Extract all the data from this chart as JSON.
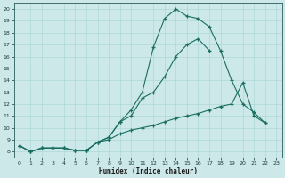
{
  "xlabel": "Humidex (Indice chaleur)",
  "bg_color": "#cce8e8",
  "line_color": "#1a6e60",
  "xlim": [
    -0.5,
    23.5
  ],
  "ylim": [
    7.5,
    20.5
  ],
  "yticks": [
    8,
    9,
    10,
    11,
    12,
    13,
    14,
    15,
    16,
    17,
    18,
    19,
    20
  ],
  "xticks": [
    0,
    1,
    2,
    3,
    4,
    5,
    6,
    7,
    8,
    9,
    10,
    11,
    12,
    13,
    14,
    15,
    16,
    17,
    18,
    19,
    20,
    21,
    22,
    23
  ],
  "line1_x": [
    0,
    1,
    2,
    3,
    4,
    5,
    6,
    7,
    8,
    9,
    10,
    11,
    12,
    13,
    14,
    15,
    16,
    17,
    18,
    19,
    20,
    21,
    22
  ],
  "line1_y": [
    8.5,
    8.0,
    8.3,
    8.3,
    8.3,
    8.1,
    8.1,
    8.8,
    9.2,
    10.5,
    11.5,
    13.0,
    16.8,
    19.2,
    20.0,
    19.4,
    19.2,
    18.5,
    16.5,
    14.0,
    12.0,
    11.3,
    10.4
  ],
  "line2_x": [
    0,
    1,
    2,
    3,
    4,
    5,
    6,
    7,
    8,
    9,
    10,
    11,
    12,
    13,
    14,
    15,
    16,
    17,
    18,
    19,
    20,
    21,
    22
  ],
  "line2_y": [
    8.5,
    8.0,
    8.3,
    8.3,
    8.3,
    8.1,
    8.1,
    8.8,
    9.2,
    10.5,
    11.0,
    12.5,
    13.0,
    14.3,
    16.0,
    17.0,
    17.5,
    16.5,
    null,
    null,
    null,
    null,
    null
  ],
  "line3_x": [
    0,
    1,
    2,
    3,
    4,
    5,
    6,
    7,
    8,
    9,
    10,
    11,
    12,
    13,
    14,
    15,
    16,
    17,
    18,
    19,
    20,
    21,
    22
  ],
  "line3_y": [
    8.5,
    8.0,
    8.3,
    8.3,
    8.3,
    8.1,
    8.1,
    8.8,
    9.0,
    9.5,
    9.8,
    10.0,
    10.2,
    10.5,
    10.8,
    11.0,
    11.2,
    11.5,
    11.8,
    12.0,
    13.8,
    11.0,
    10.4
  ]
}
